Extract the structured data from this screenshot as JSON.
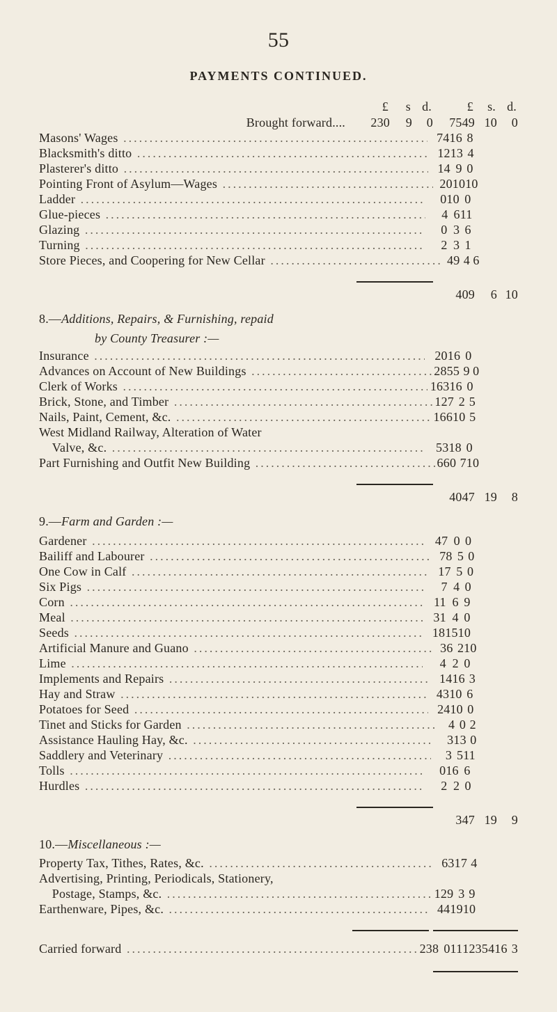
{
  "page_number": "55",
  "continued_title": "PAYMENTS CONTINUED.",
  "currency_header": {
    "L": "£",
    "s": "s",
    "d": "d."
  },
  "brought_forward_label": "Brought forward....",
  "brought_forward_a": {
    "L": "230",
    "s": "9",
    "d": "0"
  },
  "brought_forward_b": {
    "L": "7549",
    "s": "10",
    "d": "0"
  },
  "group_pre": [
    {
      "label": "Masons' Wages",
      "L": "74",
      "s": "16",
      "d": "8"
    },
    {
      "label": "Blacksmith's ditto",
      "L": "12",
      "s": "13",
      "d": "4"
    },
    {
      "label": "Plasterer's ditto",
      "L": "14",
      "s": "9",
      "d": "0"
    },
    {
      "label": "Pointing Front of Asylum—Wages",
      "L": "20",
      "s": "10",
      "d": "10"
    },
    {
      "label": "Ladder",
      "L": "0",
      "s": "10",
      "d": "0"
    },
    {
      "label": "Glue-pieces",
      "L": "4",
      "s": "6",
      "d": "11"
    },
    {
      "label": "Glazing",
      "L": "0",
      "s": "3",
      "d": "6"
    },
    {
      "label": "Turning",
      "L": "2",
      "s": "3",
      "d": "1"
    },
    {
      "label": "Store Pieces, and Coopering for New Cellar",
      "L": "49",
      "s": "4",
      "d": "6"
    }
  ],
  "total_pre": {
    "L": "409",
    "s": "6",
    "d": "10"
  },
  "sec8": {
    "num": "8.—",
    "title": "Additions, Repairs, & Furnishing, repaid",
    "sub": "by County Treasurer :—"
  },
  "group8": [
    {
      "label": "Insurance",
      "L": "20",
      "s": "16",
      "d": "0"
    },
    {
      "label": "Advances on Account of New Buildings",
      "L": "2855",
      "s": "9",
      "d": "0"
    },
    {
      "label": "Clerk of Works",
      "L": "163",
      "s": "16",
      "d": "0"
    },
    {
      "label": "Brick, Stone, and Timber",
      "L": "127",
      "s": "2",
      "d": "5"
    },
    {
      "label": "Nails, Paint, Cement, &c.",
      "L": "166",
      "s": "10",
      "d": "5"
    },
    {
      "label": "West Midland Railway, Alteration of Water",
      "noleader": true
    },
    {
      "label": "    Valve, &c.",
      "L": "53",
      "s": "18",
      "d": "0"
    },
    {
      "label": "Part Furnishing and Outfit New Building",
      "L": "660",
      "s": "7",
      "d": "10"
    }
  ],
  "total8": {
    "L": "4047",
    "s": "19",
    "d": "8"
  },
  "sec9": {
    "num": "9.—",
    "title": "Farm and Garden :—"
  },
  "group9": [
    {
      "label": "Gardener",
      "L": "47",
      "s": "0",
      "d": "0"
    },
    {
      "label": "Bailiff and Labourer",
      "L": "78",
      "s": "5",
      "d": "0"
    },
    {
      "label": "One Cow in Calf",
      "L": "17",
      "s": "5",
      "d": "0"
    },
    {
      "label": "Six Pigs",
      "L": "7",
      "s": "4",
      "d": "0"
    },
    {
      "label": "Corn",
      "L": "11",
      "s": "6",
      "d": "9"
    },
    {
      "label": "Meal",
      "L": "31",
      "s": "4",
      "d": "0"
    },
    {
      "label": "Seeds",
      "L": "18",
      "s": "15",
      "d": "10"
    },
    {
      "label": "Artificial Manure and Guano",
      "L": "36",
      "s": "2",
      "d": "10"
    },
    {
      "label": "Lime",
      "L": "4",
      "s": "2",
      "d": "0"
    },
    {
      "label": "Implements and Repairs",
      "L": "14",
      "s": "16",
      "d": "3"
    },
    {
      "label": "Hay and Straw",
      "L": "43",
      "s": "10",
      "d": "6"
    },
    {
      "label": "Potatoes for Seed",
      "L": "24",
      "s": "10",
      "d": "0"
    },
    {
      "label": "Tinet and Sticks for Garden",
      "L": "4",
      "s": "0",
      "d": "2"
    },
    {
      "label": "Assistance Hauling Hay, &c.",
      "L": "3",
      "s": "13",
      "d": "0"
    },
    {
      "label": "Saddlery and Veterinary",
      "L": "3",
      "s": "5",
      "d": "11"
    },
    {
      "label": "Tolls",
      "L": "0",
      "s": "16",
      "d": "6"
    },
    {
      "label": "Hurdles",
      "L": "2",
      "s": "2",
      "d": "0"
    }
  ],
  "total9": {
    "L": "347",
    "s": "19",
    "d": "9"
  },
  "sec10": {
    "num": "10.—",
    "title": "Miscellaneous :—"
  },
  "group10": [
    {
      "label": "Property Tax, Tithes, Rates, &c.",
      "L": "63",
      "s": "17",
      "d": "4"
    },
    {
      "label": "Advertising, Printing, Periodicals, Stationery,",
      "noleader": true
    },
    {
      "label": "    Postage, Stamps, &c.",
      "L": "129",
      "s": "3",
      "d": "9"
    },
    {
      "label": "Earthenware, Pipes, &c.",
      "L": "44",
      "s": "19",
      "d": "10"
    }
  ],
  "carried_label": "Carried forward",
  "carried_a": {
    "L": "238",
    "s": "0",
    "d": "11"
  },
  "carried_b": {
    "L": "12354",
    "s": "16",
    "d": "3"
  }
}
